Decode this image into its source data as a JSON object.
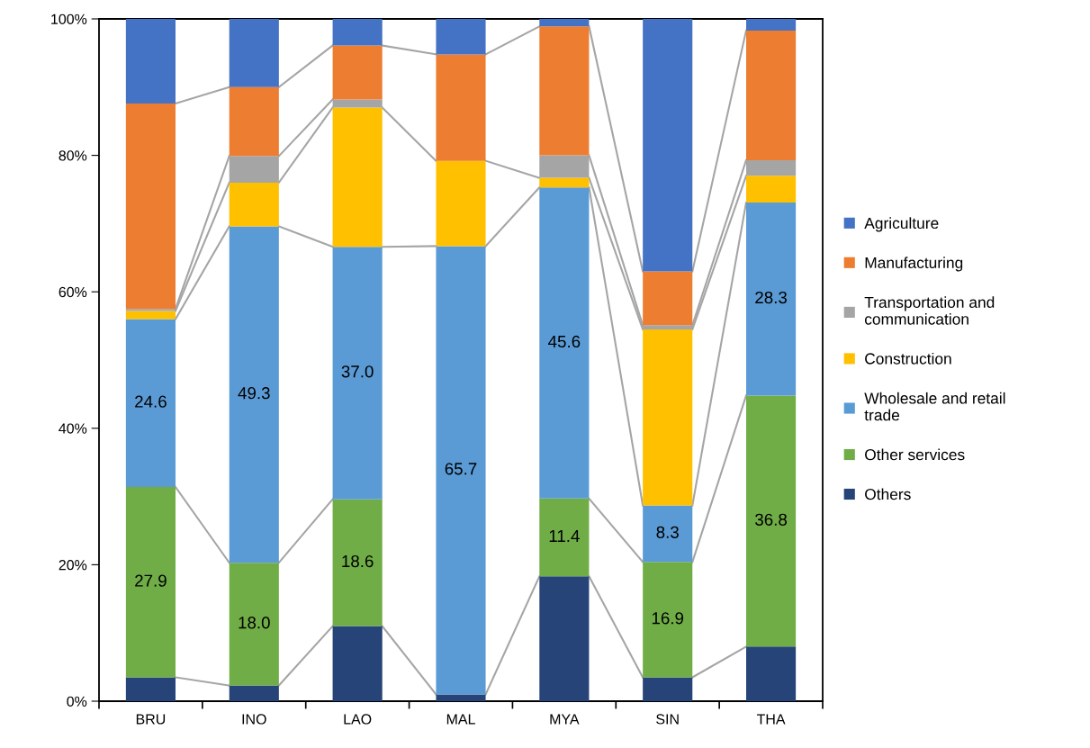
{
  "chart_data": {
    "type": "bar",
    "stacked": true,
    "categories": [
      "BRU",
      "INO",
      "LAO",
      "MAL",
      "MYA",
      "SIN",
      "THA"
    ],
    "series": [
      {
        "name": "Others",
        "color": "#264478",
        "values": [
          3.5,
          2.3,
          11.0,
          1.0,
          18.3,
          3.5,
          8.0
        ],
        "value_labels": [
          null,
          null,
          null,
          null,
          null,
          null,
          null
        ]
      },
      {
        "name": "Other services",
        "color": "#70ad47",
        "values": [
          27.9,
          18.0,
          18.6,
          0,
          11.4,
          16.9,
          36.8
        ],
        "value_labels": [
          "27.9",
          "18.0",
          "18.6",
          null,
          "11.4",
          "16.9",
          "36.8"
        ]
      },
      {
        "name": "Wholesale and retail\ntrade",
        "color": "#5b9bd5",
        "values": [
          24.6,
          49.3,
          37.0,
          65.7,
          45.6,
          8.3,
          28.3
        ],
        "value_labels": [
          "24.6",
          "49.3",
          "37.0",
          "65.7",
          "45.6",
          "8.3",
          "28.3"
        ]
      },
      {
        "name": "Construction",
        "color": "#ffc000",
        "values": [
          1.2,
          6.4,
          20.4,
          12.5,
          1.4,
          25.8,
          3.9
        ],
        "value_labels": [
          null,
          null,
          null,
          null,
          null,
          null,
          null
        ]
      },
      {
        "name": "Transportation and\ncommunication",
        "color": "#a5a5a5",
        "values": [
          0.3,
          3.9,
          1.2,
          0,
          3.3,
          0.6,
          2.3
        ],
        "value_labels": [
          null,
          null,
          null,
          null,
          null,
          null,
          null
        ]
      },
      {
        "name": "Manufacturing",
        "color": "#ed7d31",
        "values": [
          30.1,
          10.1,
          7.9,
          15.6,
          18.9,
          7.9,
          19.0
        ],
        "value_labels": [
          null,
          null,
          null,
          null,
          null,
          null,
          null
        ]
      },
      {
        "name": "Agriculture",
        "color": "#4472c4",
        "values": [
          12.4,
          10.0,
          3.9,
          5.2,
          1.1,
          37.0,
          1.7
        ],
        "value_labels": [
          null,
          null,
          null,
          null,
          null,
          null,
          null
        ]
      }
    ],
    "ylim": [
      0,
      100
    ],
    "yticks": [
      {
        "value": 0,
        "label": "0%"
      },
      {
        "value": 20,
        "label": "20%"
      },
      {
        "value": 40,
        "label": "40%"
      },
      {
        "value": 60,
        "label": "60%"
      },
      {
        "value": 80,
        "label": "80%"
      },
      {
        "value": 100,
        "label": "100%"
      }
    ],
    "grid": false,
    "legend": "right"
  }
}
